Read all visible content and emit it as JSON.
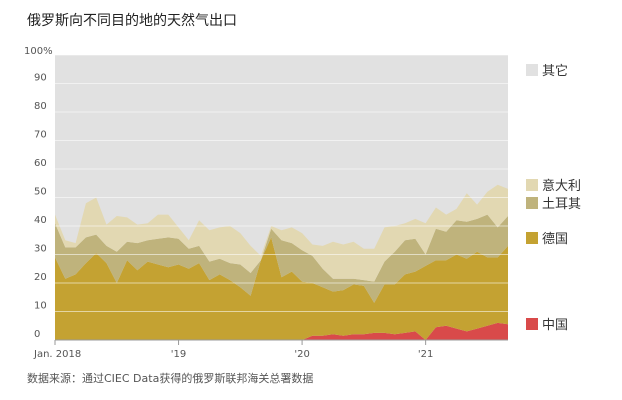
{
  "title": "俄罗斯向不同目的地的天然气出口",
  "source": "数据来源：通过CIEC Data获得的俄罗斯联邦海关总署数据",
  "chart_data": {
    "type": "area",
    "stacked": true,
    "ylim": [
      0,
      100
    ],
    "yticks": [
      "0",
      "10",
      "20",
      "30",
      "40",
      "50",
      "60",
      "70",
      "80",
      "90",
      "100%"
    ],
    "xticks": [
      {
        "label": "Jan. 2018",
        "index": 0
      },
      {
        "label": "'19",
        "index": 12
      },
      {
        "label": "'20",
        "index": 24
      },
      {
        "label": "'21",
        "index": 36
      }
    ],
    "months": [
      "2018-01",
      "2018-02",
      "2018-03",
      "2018-04",
      "2018-05",
      "2018-06",
      "2018-07",
      "2018-08",
      "2018-09",
      "2018-10",
      "2018-11",
      "2018-12",
      "2019-01",
      "2019-02",
      "2019-03",
      "2019-04",
      "2019-05",
      "2019-06",
      "2019-07",
      "2019-08",
      "2019-09",
      "2019-10",
      "2019-11",
      "2019-12",
      "2020-01",
      "2020-02",
      "2020-03",
      "2020-04",
      "2020-05",
      "2020-06",
      "2020-07",
      "2020-08",
      "2020-09",
      "2020-10",
      "2020-11",
      "2020-12",
      "2021-01",
      "2021-02",
      "2021-03",
      "2021-04",
      "2021-05",
      "2021-06",
      "2021-07",
      "2021-08",
      "2021-09"
    ],
    "legend_position": "right",
    "series": [
      {
        "name": "中国",
        "color": "#d94a4a",
        "values": [
          0,
          0,
          0,
          0,
          0,
          0,
          0,
          0,
          0,
          0,
          0,
          0,
          0,
          0,
          0,
          0,
          0,
          0,
          0,
          0,
          0,
          0,
          0,
          0,
          0,
          1.5,
          1.5,
          2,
          1.5,
          2,
          2,
          2.5,
          2.5,
          2,
          2.5,
          3,
          0,
          4.5,
          5,
          4,
          3,
          4,
          5,
          6,
          5.5
        ]
      },
      {
        "name": "德国",
        "color": "#c4a232",
        "values": [
          29,
          21.5,
          23,
          27,
          30.5,
          27,
          20,
          28,
          24.5,
          27.5,
          26.5,
          25.5,
          26.5,
          25,
          27,
          21,
          23,
          21,
          18.5,
          15.5,
          28,
          36,
          22,
          24,
          20.5,
          18.5,
          17,
          15,
          16,
          17.5,
          17,
          10.5,
          17,
          17.5,
          20.5,
          21,
          26,
          23.5,
          23,
          26,
          25.5,
          27,
          24,
          23,
          27.5
        ]
      },
      {
        "name": "土耳其",
        "color": "#bfb37c",
        "values": [
          12,
          11,
          9.5,
          9,
          6.5,
          6,
          11,
          6.5,
          9.5,
          7.5,
          9,
          10.5,
          9,
          7,
          6,
          6.5,
          5.5,
          6,
          8,
          8,
          0,
          3,
          13,
          10,
          11,
          9.5,
          6.5,
          4.5,
          4,
          2,
          2,
          7.5,
          8,
          11.5,
          12,
          11.5,
          4,
          11,
          10,
          12,
          13,
          11.5,
          15,
          10.5,
          10.5
        ]
      },
      {
        "name": "意大利",
        "color": "#e2d8b2",
        "values": [
          3,
          2.5,
          1.5,
          12,
          13,
          7.5,
          12.5,
          8.5,
          6.5,
          6,
          8.5,
          8,
          4,
          3,
          9,
          11,
          11,
          13,
          11,
          9.5,
          1.5,
          1,
          3.5,
          5.5,
          6,
          4,
          8,
          13,
          12,
          13,
          11,
          11.5,
          12,
          9,
          6,
          7,
          11,
          7.5,
          6,
          4,
          10,
          5,
          8,
          15,
          9.5
        ]
      },
      {
        "name": "其它",
        "color": "#e1e1e1",
        "remainder": true
      }
    ]
  }
}
